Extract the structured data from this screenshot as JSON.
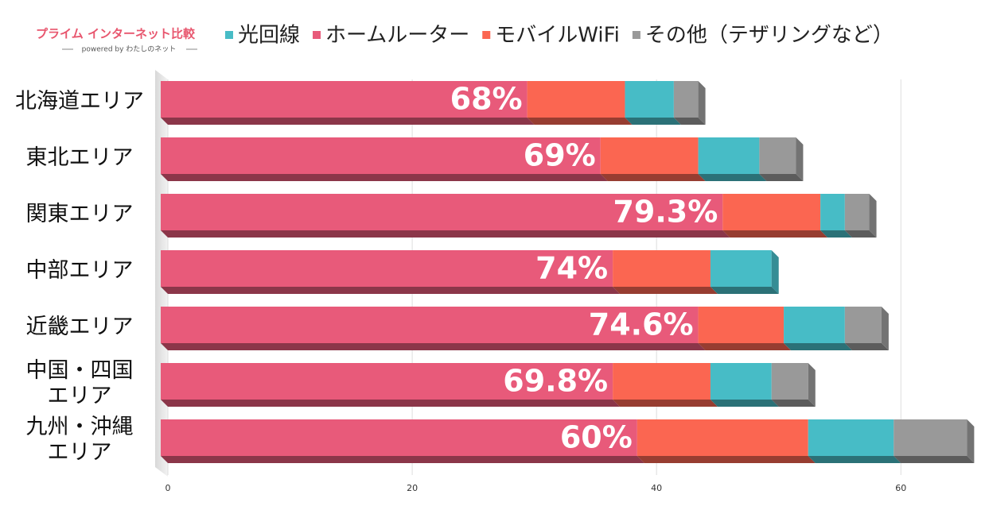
{
  "chart_data": {
    "type": "stacked-hbar",
    "logo": {
      "title": "プライム インターネット比較",
      "subtitle": "powered by わたしのネット"
    },
    "categories": [
      "北海道エリア",
      "東北エリア",
      "関東エリア",
      "中部エリア",
      "近畿エリア",
      "中国・四国\nエリア",
      "九州・沖縄\nエリア"
    ],
    "series": [
      {
        "name": "光回線",
        "color": "#47bcc6",
        "values": [
          4,
          5,
          2,
          5,
          5,
          5,
          7
        ]
      },
      {
        "name": "ホームルーター",
        "color": "#e85a7a",
        "values": [
          30,
          36,
          46,
          37,
          44,
          37,
          39
        ]
      },
      {
        "name": "モバイルWiFi",
        "color": "#fb6651",
        "values": [
          8,
          8,
          8,
          8,
          7,
          8,
          14
        ]
      },
      {
        "name": "その他（テザリングなど）",
        "color": "#999999",
        "values": [
          2,
          3,
          2,
          0,
          3,
          3,
          6
        ]
      }
    ],
    "annotations": [
      "68%",
      "69%",
      "79.3%",
      "74%",
      "74.6%",
      "69.8%",
      "60%"
    ],
    "xlim": [
      0,
      66.3
    ],
    "xticks": [
      0,
      20,
      40,
      60
    ],
    "grid": true
  }
}
